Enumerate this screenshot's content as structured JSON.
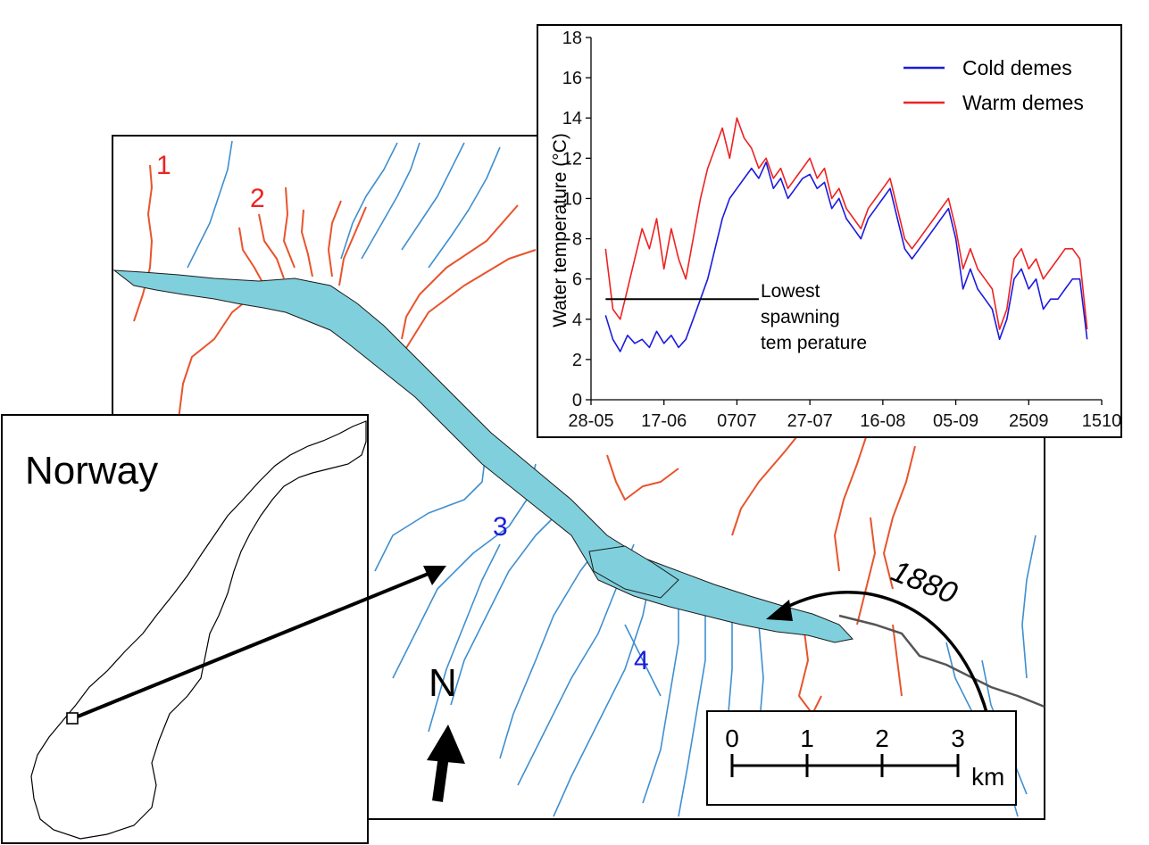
{
  "colors": {
    "warm": "#ee2222",
    "cold": "#1b1bdd",
    "lake": "#7fd0dc",
    "warm_river": "#e8542c",
    "cold_river": "#3f8fd0"
  },
  "inset_map": {
    "country_label": "Norway"
  },
  "site_labels": [
    {
      "id": "1",
      "type": "warm"
    },
    {
      "id": "2",
      "type": "warm"
    },
    {
      "id": "3",
      "type": "cold"
    },
    {
      "id": "4",
      "type": "cold"
    }
  ],
  "year_label": "1880",
  "north_arrow": {
    "label": "N"
  },
  "scale_bar": {
    "ticks": [
      "0",
      "1",
      "2",
      "3"
    ],
    "unit": "km"
  },
  "chart_data": {
    "type": "line",
    "ylabel": "Water temperature (°C)",
    "xlabel": "",
    "ylim": [
      0,
      18
    ],
    "yticks": [
      0,
      2,
      4,
      6,
      8,
      10,
      12,
      14,
      16,
      18
    ],
    "xlim": [
      "28-05",
      "15-10"
    ],
    "xticks": [
      "28-05",
      "17-06",
      "07-07",
      "27-07",
      "16-08",
      "05-09",
      "25-09",
      "15-10"
    ],
    "xtick_labels": [
      "28-05",
      "17-06",
      "0707",
      "27-07",
      "16-08",
      "05-09",
      "2509",
      "1510"
    ],
    "legend": "top-right",
    "series": [
      {
        "name": "Cold demes",
        "color": "#1b1bdd",
        "x": [
          "01-06",
          "03-06",
          "05-06",
          "07-06",
          "09-06",
          "11-06",
          "13-06",
          "15-06",
          "17-06",
          "19-06",
          "21-06",
          "23-06",
          "25-06",
          "27-06",
          "29-06",
          "01-07",
          "03-07",
          "05-07",
          "07-07",
          "09-07",
          "11-07",
          "13-07",
          "15-07",
          "17-07",
          "19-07",
          "21-07",
          "23-07",
          "25-07",
          "27-07",
          "29-07",
          "31-07",
          "02-08",
          "04-08",
          "06-08",
          "08-08",
          "10-08",
          "12-08",
          "14-08",
          "16-08",
          "18-08",
          "20-08",
          "22-08",
          "24-08",
          "26-08",
          "28-08",
          "30-08",
          "01-09",
          "03-09",
          "05-09",
          "07-09",
          "09-09",
          "11-09",
          "13-09",
          "15-09",
          "17-09",
          "19-09",
          "21-09",
          "23-09",
          "25-09",
          "27-09",
          "29-09",
          "01-10",
          "03-10",
          "05-10",
          "07-10",
          "09-10",
          "11-10"
        ],
        "values": [
          4.2,
          3.0,
          2.4,
          3.2,
          2.8,
          3.0,
          2.6,
          3.4,
          2.8,
          3.2,
          2.6,
          3.0,
          4.0,
          5.0,
          6.0,
          7.5,
          9.0,
          10.0,
          10.5,
          11.0,
          11.5,
          11.0,
          11.8,
          10.5,
          11.0,
          10.0,
          10.5,
          11.0,
          11.2,
          10.5,
          10.8,
          9.5,
          10.0,
          9.0,
          8.5,
          8.0,
          9.0,
          9.5,
          10.0,
          10.5,
          9.0,
          7.5,
          7.0,
          7.5,
          8.0,
          8.5,
          9.0,
          9.5,
          8.0,
          5.5,
          6.5,
          5.5,
          5.0,
          4.5,
          3.0,
          4.0,
          6.0,
          6.5,
          5.5,
          6.0,
          4.5,
          5.0,
          5.0,
          5.5,
          6.0,
          6.0,
          3.0
        ]
      },
      {
        "name": "Warm demes",
        "color": "#ee2222",
        "x": [
          "01-06",
          "03-06",
          "05-06",
          "07-06",
          "09-06",
          "11-06",
          "13-06",
          "15-06",
          "17-06",
          "19-06",
          "21-06",
          "23-06",
          "25-06",
          "27-06",
          "29-06",
          "01-07",
          "03-07",
          "05-07",
          "07-07",
          "09-07",
          "11-07",
          "13-07",
          "15-07",
          "17-07",
          "19-07",
          "21-07",
          "23-07",
          "25-07",
          "27-07",
          "29-07",
          "31-07",
          "02-08",
          "04-08",
          "06-08",
          "08-08",
          "10-08",
          "12-08",
          "14-08",
          "16-08",
          "18-08",
          "20-08",
          "22-08",
          "24-08",
          "26-08",
          "28-08",
          "30-08",
          "01-09",
          "03-09",
          "05-09",
          "07-09",
          "09-09",
          "11-09",
          "13-09",
          "15-09",
          "17-09",
          "19-09",
          "21-09",
          "23-09",
          "25-09",
          "27-09",
          "29-09",
          "01-10",
          "03-10",
          "05-10",
          "07-10",
          "09-10",
          "11-10"
        ],
        "values": [
          7.5,
          4.5,
          4.0,
          5.5,
          7.0,
          8.5,
          7.5,
          9.0,
          6.5,
          8.5,
          7.0,
          6.0,
          8.0,
          10.0,
          11.5,
          12.5,
          13.5,
          12.0,
          14.0,
          13.0,
          12.5,
          11.5,
          12.0,
          11.0,
          11.5,
          10.5,
          11.0,
          11.5,
          12.0,
          11.0,
          11.5,
          10.0,
          10.5,
          9.5,
          9.0,
          8.5,
          9.5,
          10.0,
          10.5,
          11.0,
          9.5,
          8.0,
          7.5,
          8.0,
          8.5,
          9.0,
          9.5,
          10.0,
          8.5,
          6.5,
          7.5,
          6.5,
          6.0,
          5.5,
          3.5,
          4.5,
          7.0,
          7.5,
          6.5,
          7.0,
          6.0,
          6.5,
          7.0,
          7.5,
          7.5,
          7.0,
          3.5
        ]
      }
    ],
    "annotations": [
      {
        "text_lines": [
          "Lowest",
          "spawning",
          "tem perature"
        ],
        "y": 5,
        "x_start": "01-06",
        "x_end": "13-07"
      }
    ]
  }
}
